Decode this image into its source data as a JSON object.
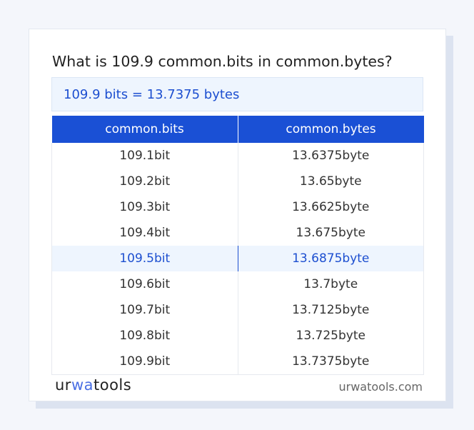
{
  "title": "What is 109.9 common.bits in common.bytes?",
  "result": "109.9 bits = 13.7375 bytes",
  "table": {
    "headers": [
      "common.bits",
      "common.bytes"
    ],
    "rows": [
      [
        "109.1bit",
        "13.6375byte"
      ],
      [
        "109.2bit",
        "13.65byte"
      ],
      [
        "109.3bit",
        "13.6625byte"
      ],
      [
        "109.4bit",
        "13.675byte"
      ],
      [
        "109.5bit",
        "13.6875byte"
      ],
      [
        "109.6bit",
        "13.7byte"
      ],
      [
        "109.7bit",
        "13.7125byte"
      ],
      [
        "109.8bit",
        "13.725byte"
      ],
      [
        "109.9bit",
        "13.7375byte"
      ]
    ],
    "highlighted_row": 4
  },
  "footer": {
    "logo": "urwatools",
    "logo_parts": [
      "ur",
      "wa",
      "tools"
    ],
    "site": "urwatools.com"
  },
  "colors": {
    "accent": "#1a50d5",
    "highlight_bg": "#eef5fe"
  }
}
